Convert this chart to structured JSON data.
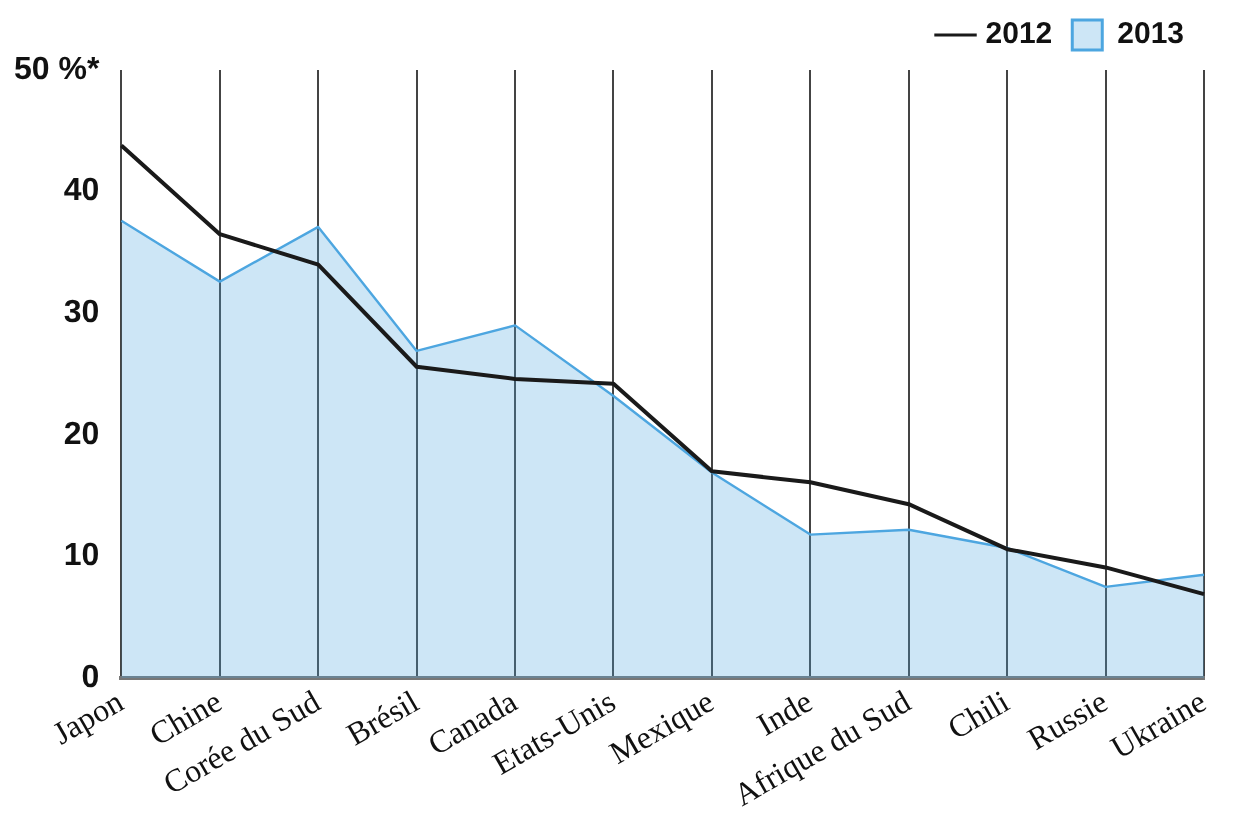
{
  "chart_data": {
    "type": "area",
    "categories": [
      "Japon",
      "Chine",
      "Corée du Sud",
      "Brésil",
      "Canada",
      "Etats-Unis",
      "Mexique",
      "Inde",
      "Afrique du Sud",
      "Chili",
      "Russie",
      "Ukraine"
    ],
    "series": [
      {
        "name": "2012",
        "type": "line",
        "color": "#1a1a1a",
        "values": [
          43.8,
          36.5,
          34.0,
          25.6,
          24.6,
          24.2,
          17.0,
          16.1,
          14.3,
          10.6,
          9.1,
          6.9
        ]
      },
      {
        "name": "2013",
        "type": "area",
        "color": "#4da6e0",
        "values": [
          37.6,
          32.6,
          37.1,
          26.9,
          29.0,
          23.2,
          16.9,
          11.8,
          12.2,
          10.7,
          7.5,
          8.5
        ]
      }
    ],
    "ylim": [
      0,
      50
    ],
    "yticks": [
      0,
      10,
      20,
      30,
      40,
      {
        "value": 50,
        "label": "50 %*"
      }
    ],
    "legend": "top right",
    "grid": "x",
    "marker": "none"
  }
}
